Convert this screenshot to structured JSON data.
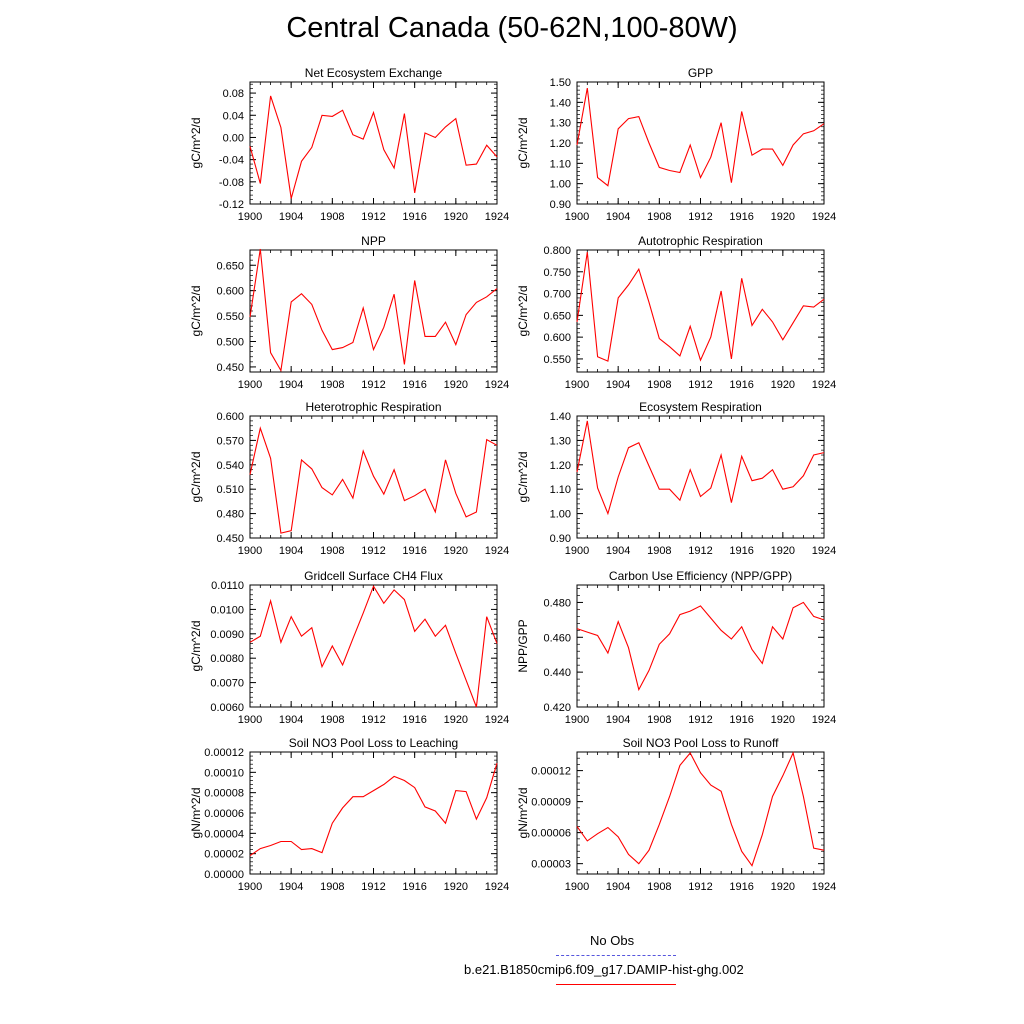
{
  "title": "Central Canada (50-62N,100-80W)",
  "legend": [
    {
      "label": "No Obs",
      "color": "#5555dd",
      "style": "dashed"
    },
    {
      "label": "b.e21.B1850cmip6.f09_g17.DAMIP-hist-ghg.002",
      "color": "#ff0000",
      "style": "solid"
    }
  ],
  "colors": {
    "series": "#ff0000",
    "obs": "#5555dd",
    "axis": "#000000"
  },
  "chart_data": [
    {
      "type": "line",
      "title": "Net Ecosystem Exchange",
      "ylabel": "gC/m^2/d",
      "xlim": [
        1900,
        1924
      ],
      "ylim": [
        -0.12,
        0.1
      ],
      "xticks": [
        "1900",
        "1904",
        "1908",
        "1912",
        "1916",
        "1920",
        "1924"
      ],
      "yticks": [
        "-0.12",
        "-0.08",
        "-0.04",
        "0.00",
        "0.04",
        "0.08"
      ],
      "x": [
        1900,
        1901,
        1902,
        1903,
        1904,
        1905,
        1906,
        1907,
        1908,
        1909,
        1910,
        1911,
        1912,
        1913,
        1914,
        1915,
        1916,
        1917,
        1918,
        1919,
        1920,
        1921,
        1922,
        1923,
        1924
      ],
      "series": [
        {
          "values": [
            -0.016,
            -0.083,
            0.075,
            0.018,
            -0.11,
            -0.043,
            -0.018,
            0.04,
            0.038,
            0.049,
            0.005,
            -0.003,
            0.045,
            -0.022,
            -0.055,
            0.043,
            -0.1,
            0.008,
            0.0,
            0.019,
            0.034,
            -0.05,
            -0.048,
            -0.014,
            -0.035
          ]
        }
      ]
    },
    {
      "type": "line",
      "title": "GPP",
      "ylabel": "gC/m^2/d",
      "xlim": [
        1900,
        1924
      ],
      "ylim": [
        0.9,
        1.5
      ],
      "xticks": [
        "1900",
        "1904",
        "1908",
        "1912",
        "1916",
        "1920",
        "1924"
      ],
      "yticks": [
        "0.90",
        "1.00",
        "1.10",
        "1.20",
        "1.30",
        "1.40",
        "1.50"
      ],
      "x": [
        1900,
        1901,
        1902,
        1903,
        1904,
        1905,
        1906,
        1907,
        1908,
        1909,
        1910,
        1911,
        1912,
        1913,
        1914,
        1915,
        1916,
        1917,
        1918,
        1919,
        1920,
        1921,
        1922,
        1923,
        1924
      ],
      "series": [
        {
          "values": [
            1.19,
            1.47,
            1.03,
            0.99,
            1.27,
            1.32,
            1.33,
            1.2,
            1.08,
            1.065,
            1.055,
            1.19,
            1.03,
            1.13,
            1.3,
            1.005,
            1.355,
            1.14,
            1.17,
            1.17,
            1.09,
            1.19,
            1.245,
            1.26,
            1.295
          ]
        }
      ]
    },
    {
      "type": "line",
      "title": "NPP",
      "ylabel": "gC/m^2/d",
      "xlim": [
        1900,
        1924
      ],
      "ylim": [
        0.44,
        0.68
      ],
      "xticks": [
        "1900",
        "1904",
        "1908",
        "1912",
        "1916",
        "1920",
        "1924"
      ],
      "yticks": [
        "0.450",
        "0.500",
        "0.550",
        "0.600",
        "0.650"
      ],
      "x": [
        1900,
        1901,
        1902,
        1903,
        1904,
        1905,
        1906,
        1907,
        1908,
        1909,
        1910,
        1911,
        1912,
        1913,
        1914,
        1915,
        1916,
        1917,
        1918,
        1919,
        1920,
        1921,
        1922,
        1923,
        1924
      ],
      "series": [
        {
          "values": [
            0.548,
            0.682,
            0.478,
            0.443,
            0.578,
            0.594,
            0.573,
            0.522,
            0.484,
            0.488,
            0.498,
            0.566,
            0.484,
            0.528,
            0.593,
            0.455,
            0.62,
            0.51,
            0.51,
            0.538,
            0.494,
            0.553,
            0.577,
            0.588,
            0.604
          ]
        }
      ]
    },
    {
      "type": "line",
      "title": "Autotrophic Respiration",
      "ylabel": "gC/m^2/d",
      "xlim": [
        1900,
        1924
      ],
      "ylim": [
        0.52,
        0.8
      ],
      "xticks": [
        "1900",
        "1904",
        "1908",
        "1912",
        "1916",
        "1920",
        "1924"
      ],
      "yticks": [
        "0.550",
        "0.600",
        "0.650",
        "0.700",
        "0.750",
        "0.800"
      ],
      "x": [
        1900,
        1901,
        1902,
        1903,
        1904,
        1905,
        1906,
        1907,
        1908,
        1909,
        1910,
        1911,
        1912,
        1913,
        1914,
        1915,
        1916,
        1917,
        1918,
        1919,
        1920,
        1921,
        1922,
        1923,
        1924
      ],
      "series": [
        {
          "values": [
            0.635,
            0.795,
            0.555,
            0.545,
            0.69,
            0.72,
            0.756,
            0.68,
            0.597,
            0.578,
            0.557,
            0.625,
            0.547,
            0.6,
            0.706,
            0.55,
            0.735,
            0.627,
            0.664,
            0.635,
            0.594,
            0.633,
            0.672,
            0.669,
            0.687
          ]
        }
      ]
    },
    {
      "type": "line",
      "title": "Heterotrophic Respiration",
      "ylabel": "gC/m^2/d",
      "xlim": [
        1900,
        1924
      ],
      "ylim": [
        0.45,
        0.6
      ],
      "xticks": [
        "1900",
        "1904",
        "1908",
        "1912",
        "1916",
        "1920",
        "1924"
      ],
      "yticks": [
        "0.450",
        "0.480",
        "0.510",
        "0.540",
        "0.570",
        "0.600"
      ],
      "x": [
        1900,
        1901,
        1902,
        1903,
        1904,
        1905,
        1906,
        1907,
        1908,
        1909,
        1910,
        1911,
        1912,
        1913,
        1914,
        1915,
        1916,
        1917,
        1918,
        1919,
        1920,
        1921,
        1922,
        1923,
        1924
      ],
      "series": [
        {
          "values": [
            0.528,
            0.585,
            0.548,
            0.456,
            0.459,
            0.546,
            0.535,
            0.512,
            0.503,
            0.522,
            0.499,
            0.557,
            0.526,
            0.504,
            0.534,
            0.496,
            0.502,
            0.51,
            0.482,
            0.546,
            0.505,
            0.476,
            0.482,
            0.571,
            0.564
          ]
        }
      ]
    },
    {
      "type": "line",
      "title": "Ecosystem Respiration",
      "ylabel": "gC/m^2/d",
      "xlim": [
        1900,
        1924
      ],
      "ylim": [
        0.9,
        1.4
      ],
      "xticks": [
        "1900",
        "1904",
        "1908",
        "1912",
        "1916",
        "1920",
        "1924"
      ],
      "yticks": [
        "0.90",
        "1.00",
        "1.10",
        "1.20",
        "1.30",
        "1.40"
      ],
      "x": [
        1900,
        1901,
        1902,
        1903,
        1904,
        1905,
        1906,
        1907,
        1908,
        1909,
        1910,
        1911,
        1912,
        1913,
        1914,
        1915,
        1916,
        1917,
        1918,
        1919,
        1920,
        1921,
        1922,
        1923,
        1924
      ],
      "series": [
        {
          "values": [
            1.17,
            1.38,
            1.105,
            1.0,
            1.15,
            1.27,
            1.29,
            1.195,
            1.1,
            1.1,
            1.055,
            1.18,
            1.07,
            1.105,
            1.24,
            1.045,
            1.235,
            1.135,
            1.145,
            1.18,
            1.1,
            1.11,
            1.155,
            1.24,
            1.25
          ]
        }
      ]
    },
    {
      "type": "line",
      "title": "Gridcell Surface CH4 Flux",
      "ylabel": "gC/m^2/d",
      "xlim": [
        1900,
        1924
      ],
      "ylim": [
        0.006,
        0.011
      ],
      "xticks": [
        "1900",
        "1904",
        "1908",
        "1912",
        "1916",
        "1920",
        "1924"
      ],
      "yticks": [
        "0.0060",
        "0.0070",
        "0.0080",
        "0.0090",
        "0.0100",
        "0.0110"
      ],
      "x": [
        1900,
        1901,
        1902,
        1903,
        1904,
        1905,
        1906,
        1907,
        1908,
        1909,
        1910,
        1911,
        1912,
        1913,
        1914,
        1915,
        1916,
        1917,
        1918,
        1919,
        1920,
        1921,
        1922,
        1923,
        1924
      ],
      "series": [
        {
          "values": [
            0.00865,
            0.0089,
            0.01035,
            0.00865,
            0.0097,
            0.0089,
            0.00925,
            0.00765,
            0.0085,
            0.00772,
            0.0088,
            0.00985,
            0.01095,
            0.01025,
            0.0108,
            0.0104,
            0.0091,
            0.0096,
            0.0089,
            0.00935,
            0.0082,
            0.0071,
            0.006,
            0.0097,
            0.0086
          ]
        }
      ]
    },
    {
      "type": "line",
      "title": "Carbon Use Efficiency (NPP/GPP)",
      "ylabel": "NPP/GPP",
      "xlim": [
        1900,
        1924
      ],
      "ylim": [
        0.42,
        0.49
      ],
      "xticks": [
        "1900",
        "1904",
        "1908",
        "1912",
        "1916",
        "1920",
        "1924"
      ],
      "yticks": [
        "0.420",
        "0.440",
        "0.460",
        "0.480"
      ],
      "x": [
        1900,
        1901,
        1902,
        1903,
        1904,
        1905,
        1906,
        1907,
        1908,
        1909,
        1910,
        1911,
        1912,
        1913,
        1914,
        1915,
        1916,
        1917,
        1918,
        1919,
        1920,
        1921,
        1922,
        1923,
        1924
      ],
      "series": [
        {
          "values": [
            0.465,
            0.463,
            0.461,
            0.451,
            0.469,
            0.454,
            0.43,
            0.441,
            0.456,
            0.462,
            0.473,
            0.475,
            0.478,
            0.471,
            0.464,
            0.459,
            0.466,
            0.453,
            0.445,
            0.466,
            0.459,
            0.477,
            0.48,
            0.472,
            0.47
          ]
        }
      ]
    },
    {
      "type": "line",
      "title": "Soil NO3 Pool Loss to Leaching",
      "ylabel": "gN/m^2/d",
      "xlim": [
        1900,
        1924
      ],
      "ylim": [
        0,
        0.00012
      ],
      "xticks": [
        "1900",
        "1904",
        "1908",
        "1912",
        "1916",
        "1920",
        "1924"
      ],
      "yticks": [
        "0.00000",
        "0.00002",
        "0.00004",
        "0.00006",
        "0.00008",
        "0.00010",
        "0.00012"
      ],
      "x": [
        1900,
        1901,
        1902,
        1903,
        1904,
        1905,
        1906,
        1907,
        1908,
        1909,
        1910,
        1911,
        1912,
        1913,
        1914,
        1915,
        1916,
        1917,
        1918,
        1919,
        1920,
        1921,
        1922,
        1923,
        1924
      ],
      "series": [
        {
          "values": [
            1.8e-05,
            2.5e-05,
            2.8e-05,
            3.2e-05,
            3.2e-05,
            2.4e-05,
            2.5e-05,
            2.1e-05,
            5e-05,
            6.5e-05,
            7.6e-05,
            7.6e-05,
            8.2e-05,
            8.8e-05,
            9.6e-05,
            9.2e-05,
            8.5e-05,
            6.6e-05,
            6.2e-05,
            5e-05,
            8.2e-05,
            8.1e-05,
            5.4e-05,
            7.5e-05,
            0.000109
          ]
        }
      ]
    },
    {
      "type": "line",
      "title": "Soil NO3 Pool Loss to Runoff",
      "ylabel": "gN/m^2/d",
      "xlim": [
        1900,
        1924
      ],
      "ylim": [
        2e-05,
        0.000138
      ],
      "xticks": [
        "1900",
        "1904",
        "1908",
        "1912",
        "1916",
        "1920",
        "1924"
      ],
      "yticks": [
        "0.00003",
        "0.00006",
        "0.00009",
        "0.00012"
      ],
      "x": [
        1900,
        1901,
        1902,
        1903,
        1904,
        1905,
        1906,
        1907,
        1908,
        1909,
        1910,
        1911,
        1912,
        1913,
        1914,
        1915,
        1916,
        1917,
        1918,
        1919,
        1920,
        1921,
        1922,
        1923,
        1924
      ],
      "series": [
        {
          "values": [
            6.6e-05,
            5.2e-05,
            5.9e-05,
            6.5e-05,
            5.6e-05,
            3.9e-05,
            3e-05,
            4.3e-05,
            6.8e-05,
            9.5e-05,
            0.000125,
            0.000137,
            0.000118,
            0.000106,
            0.0001,
            6.8e-05,
            4.2e-05,
            2.8e-05,
            5.8e-05,
            9.5e-05,
            0.000115,
            0.000137,
            9.5e-05,
            4.5e-05,
            4.3e-05
          ]
        }
      ]
    }
  ]
}
